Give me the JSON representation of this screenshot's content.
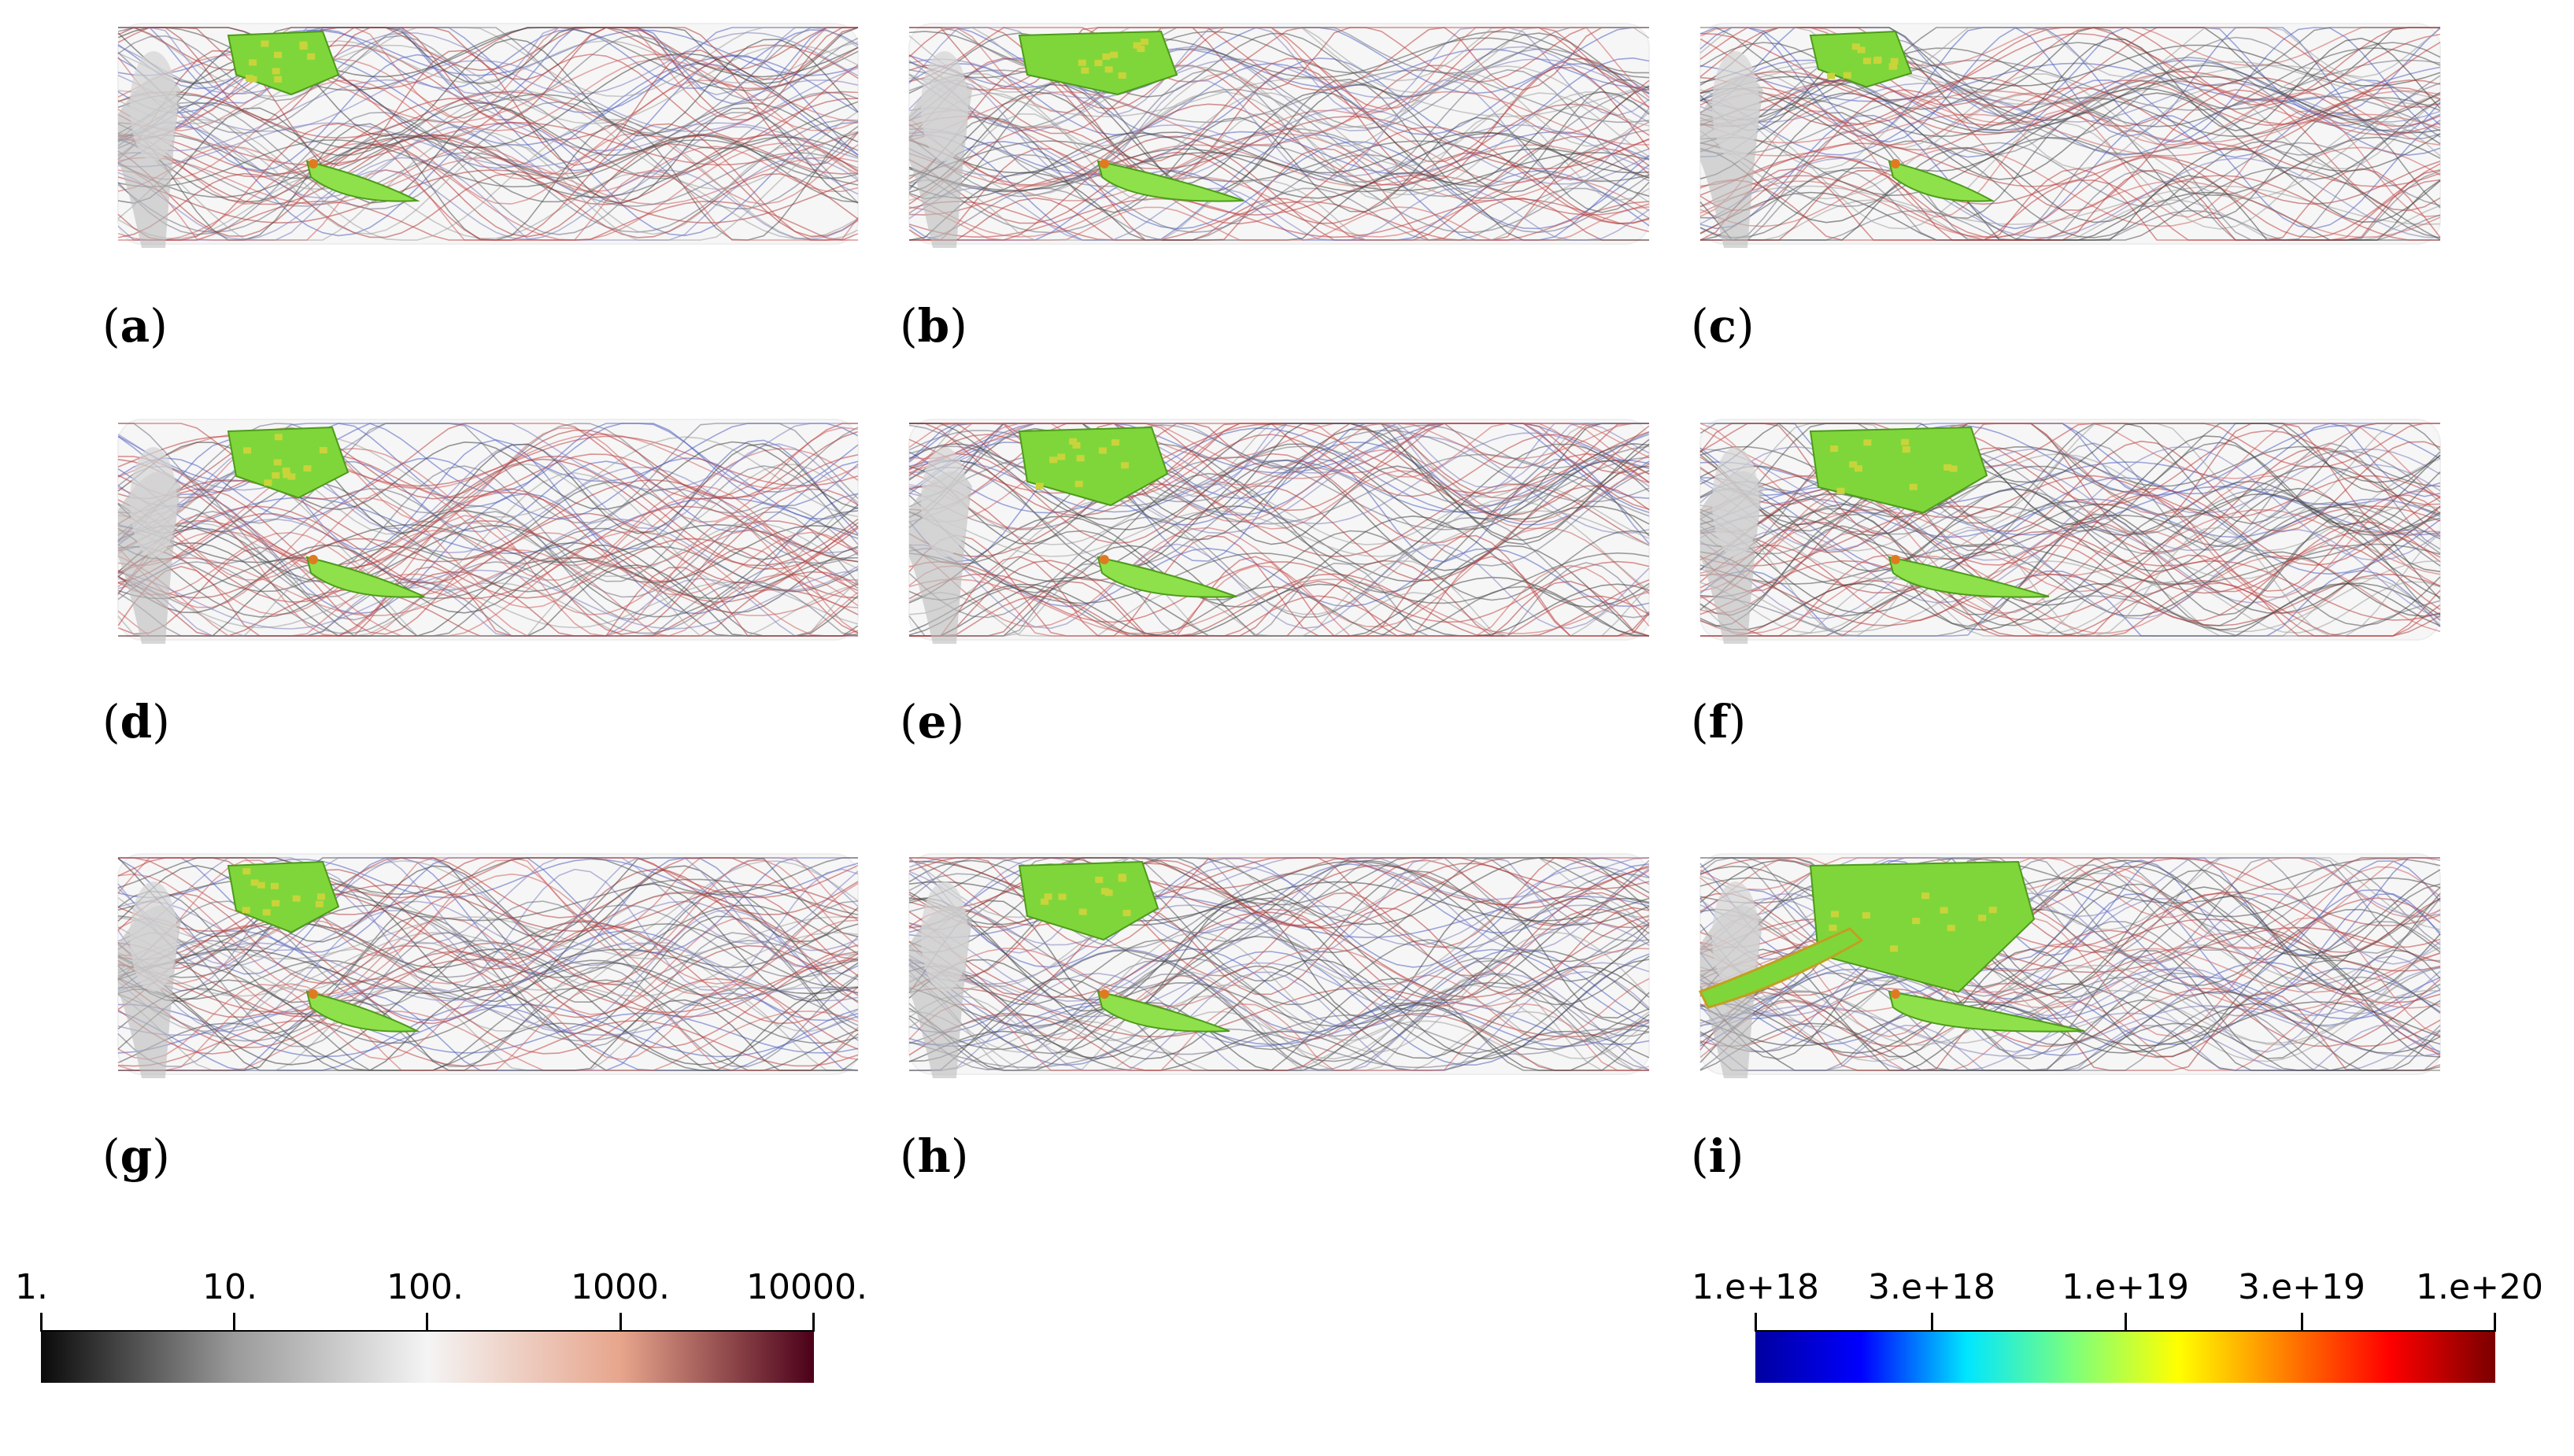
{
  "panels": [
    {
      "label": "a"
    },
    {
      "label": "b"
    },
    {
      "label": "c"
    },
    {
      "label": "d"
    },
    {
      "label": "e"
    },
    {
      "label": "f"
    },
    {
      "label": "g"
    },
    {
      "label": "h"
    },
    {
      "label": "i"
    }
  ],
  "colorbars": {
    "left": {
      "ticks": [
        "1.",
        "10.",
        "100.",
        "1000.",
        "10000."
      ],
      "colors": [
        "#0a0a0a",
        "#9a9a9a",
        "#f4f4f4",
        "#e7a58c",
        "#4b0019"
      ]
    },
    "right": {
      "ticks": [
        "1.e+18",
        "3.e+18",
        "1.e+19",
        "3.e+19",
        "1.e+20"
      ],
      "colors": [
        "#0000a0",
        "#0000ff",
        "#00e6ff",
        "#7cff7c",
        "#ffff00",
        "#ff8000",
        "#ff0000",
        "#7a0000"
      ]
    }
  }
}
